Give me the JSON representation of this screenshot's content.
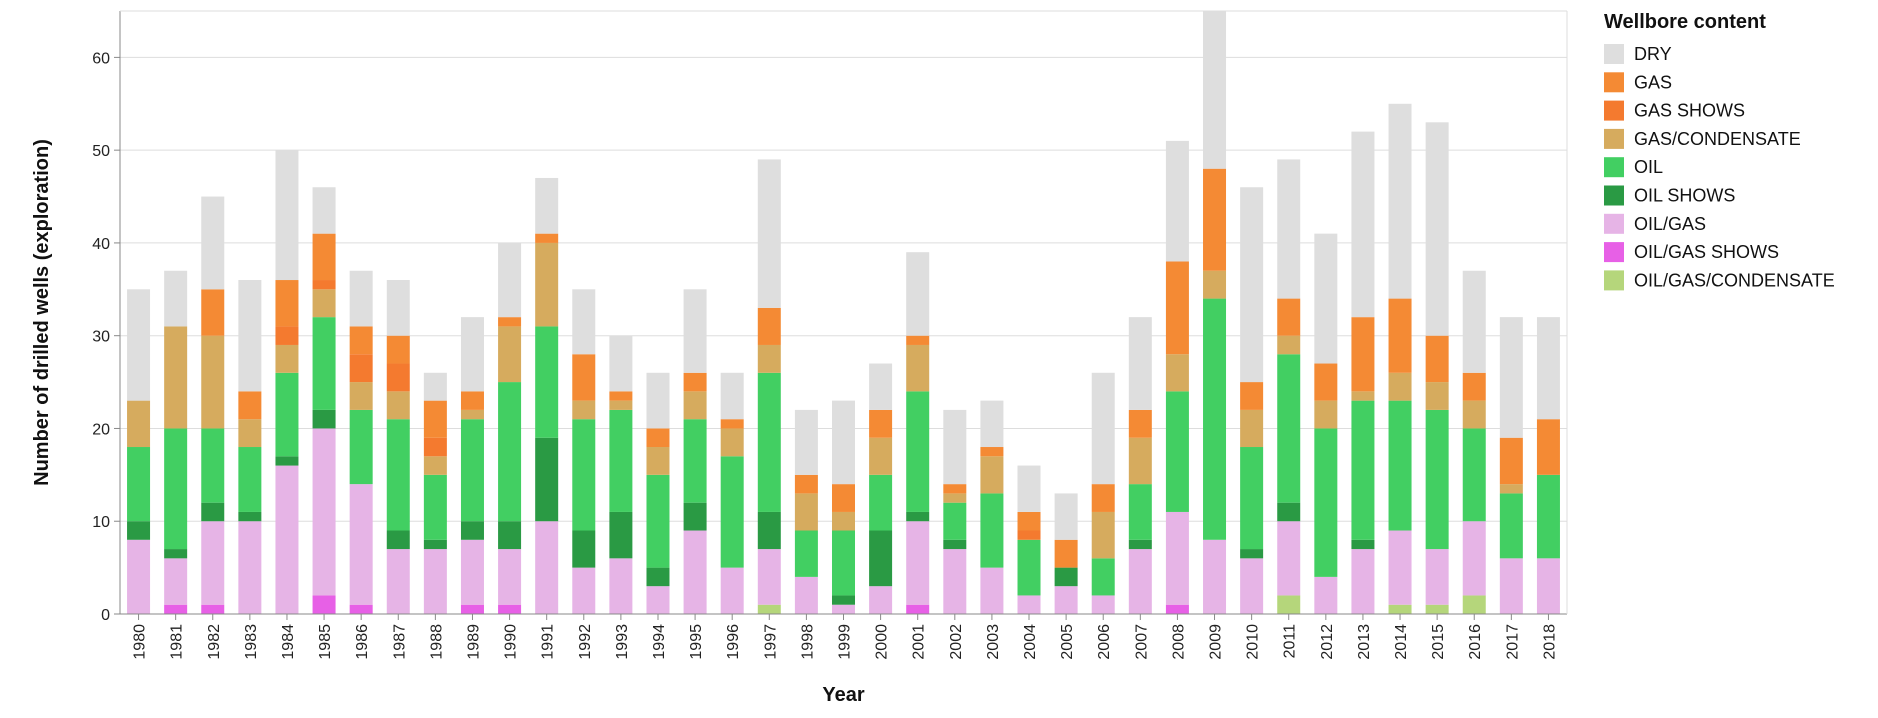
{
  "chart_data": {
    "type": "bar",
    "stacked": true,
    "xlabel": "Year",
    "ylabel": "Number of drilled wells (exploration)",
    "ylim": [
      0,
      65
    ],
    "yticks": [
      0,
      10,
      20,
      30,
      40,
      50,
      60
    ],
    "grid": true,
    "legend_title": "Wellbore content",
    "legend_position": "right",
    "categories": [
      "1980",
      "1981",
      "1982",
      "1983",
      "1984",
      "1985",
      "1986",
      "1987",
      "1988",
      "1989",
      "1990",
      "1991",
      "1992",
      "1993",
      "1994",
      "1995",
      "1996",
      "1997",
      "1998",
      "1999",
      "2000",
      "2001",
      "2002",
      "2003",
      "2004",
      "2005",
      "2006",
      "2007",
      "2008",
      "2009",
      "2010",
      "2011",
      "2012",
      "2013",
      "2014",
      "2015",
      "2016",
      "2017",
      "2018"
    ],
    "series": [
      {
        "name": "OIL/GAS/CONDENSATE",
        "color": "#b5d67b",
        "values": [
          0,
          0,
          0,
          0,
          0,
          0,
          0,
          0,
          0,
          0,
          0,
          0,
          0,
          0,
          0,
          0,
          0,
          1,
          0,
          0,
          0,
          0,
          0,
          0,
          0,
          0,
          0,
          0,
          0,
          0,
          0,
          2,
          0,
          0,
          1,
          1,
          2,
          0,
          0
        ]
      },
      {
        "name": "OIL/GAS SHOWS",
        "color": "#e760e6",
        "values": [
          0,
          1,
          1,
          0,
          0,
          2,
          1,
          0,
          0,
          1,
          1,
          0,
          0,
          0,
          0,
          0,
          0,
          0,
          0,
          0,
          0,
          1,
          0,
          0,
          0,
          0,
          0,
          0,
          1,
          0,
          0,
          0,
          0,
          0,
          0,
          0,
          0,
          0,
          0
        ]
      },
      {
        "name": "OIL/GAS",
        "color": "#e6b4e6",
        "values": [
          8,
          5,
          9,
          10,
          16,
          18,
          13,
          7,
          7,
          7,
          6,
          10,
          5,
          6,
          3,
          9,
          5,
          6,
          4,
          1,
          3,
          9,
          7,
          5,
          2,
          3,
          2,
          7,
          10,
          8,
          6,
          8,
          4,
          7,
          8,
          6,
          8,
          6,
          6
        ]
      },
      {
        "name": "OIL SHOWS",
        "color": "#2a9a44",
        "values": [
          2,
          1,
          2,
          1,
          1,
          2,
          0,
          2,
          1,
          2,
          3,
          9,
          4,
          5,
          2,
          3,
          0,
          4,
          0,
          1,
          6,
          1,
          1,
          0,
          0,
          2,
          0,
          1,
          0,
          0,
          1,
          2,
          0,
          1,
          0,
          0,
          0,
          0,
          0
        ]
      },
      {
        "name": "OIL",
        "color": "#42cf62",
        "values": [
          8,
          13,
          8,
          7,
          9,
          10,
          8,
          12,
          7,
          11,
          15,
          12,
          12,
          11,
          10,
          9,
          12,
          15,
          5,
          7,
          6,
          13,
          4,
          8,
          6,
          0,
          4,
          6,
          13,
          26,
          11,
          16,
          16,
          15,
          14,
          15,
          10,
          7,
          9
        ]
      },
      {
        "name": "GAS/CONDENSATE",
        "color": "#d6ab5e",
        "values": [
          5,
          11,
          10,
          3,
          3,
          3,
          3,
          3,
          2,
          1,
          6,
          9,
          2,
          1,
          3,
          3,
          3,
          3,
          4,
          2,
          4,
          5,
          1,
          4,
          0,
          0,
          5,
          5,
          4,
          3,
          4,
          2,
          3,
          1,
          3,
          3,
          3,
          1,
          0
        ]
      },
      {
        "name": "GAS SHOWS",
        "color": "#f47a2f",
        "values": [
          0,
          0,
          0,
          0,
          2,
          1,
          3,
          3,
          2,
          0,
          0,
          0,
          0,
          0,
          0,
          0,
          0,
          0,
          0,
          0,
          0,
          0,
          0,
          0,
          1,
          0,
          0,
          0,
          0,
          0,
          0,
          0,
          0,
          0,
          0,
          0,
          0,
          0,
          0
        ]
      },
      {
        "name": "GAS",
        "color": "#f48a34",
        "values": [
          0,
          0,
          5,
          3,
          5,
          5,
          3,
          3,
          4,
          2,
          1,
          1,
          5,
          1,
          2,
          2,
          1,
          4,
          2,
          3,
          3,
          1,
          1,
          1,
          2,
          3,
          3,
          3,
          10,
          11,
          3,
          4,
          4,
          8,
          8,
          5,
          3,
          5,
          6
        ]
      },
      {
        "name": "DRY",
        "color": "#dedede",
        "values": [
          12,
          6,
          10,
          12,
          14,
          5,
          6,
          6,
          3,
          8,
          8,
          6,
          7,
          6,
          6,
          9,
          5,
          16,
          7,
          9,
          5,
          9,
          8,
          5,
          5,
          5,
          12,
          10,
          13,
          17,
          21,
          15,
          14,
          20,
          21,
          23,
          11,
          13,
          11
        ]
      }
    ],
    "legend_order": [
      "DRY",
      "GAS",
      "GAS SHOWS",
      "GAS/CONDENSATE",
      "OIL",
      "OIL SHOWS",
      "OIL/GAS",
      "OIL/GAS SHOWS",
      "OIL/GAS/CONDENSATE"
    ]
  }
}
